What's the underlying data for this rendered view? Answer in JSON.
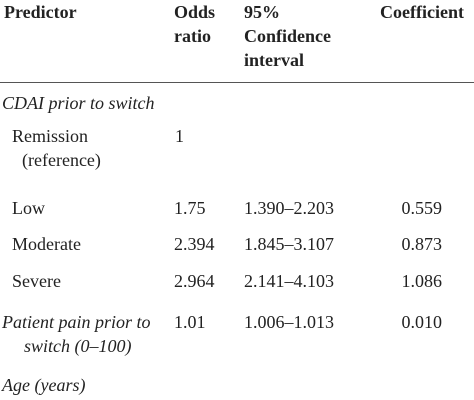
{
  "table": {
    "header": [
      "Predictor",
      "Odds ratio",
      "95% Confidence interval",
      "Coefficient"
    ],
    "rows": [
      [
        "CDAI prior to switch"
      ],
      [
        "Remission (reference)",
        "1"
      ],
      [
        "Low",
        "1.75",
        "1.390–2.203",
        "0.559"
      ],
      [
        "Moderate",
        "2.394",
        "1.845–3.107",
        "0.873"
      ],
      [
        "Severe",
        "2.964",
        "2.141–4.103",
        "1.086"
      ],
      [
        "Patient pain prior to switch (0–100)",
        "1.01",
        "1.006–1.013",
        "0.010"
      ],
      [
        "Age (years)"
      ]
    ]
  }
}
